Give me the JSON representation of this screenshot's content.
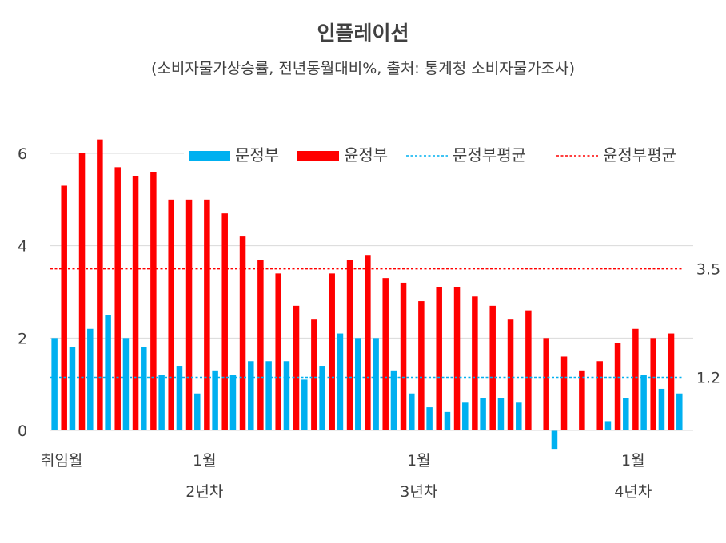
{
  "chart_data": {
    "type": "bar",
    "title": "인플레이션",
    "subtitle": "(소비자물가상승률, 전년동월대비%, 출처: 통계청 소비자물가조사)",
    "ylim": [
      0,
      6
    ],
    "yticks": [
      "0",
      "2",
      "4",
      "6"
    ],
    "grid": true,
    "legend_position": "top-right",
    "x_labels": [
      {
        "index": 0,
        "label": "취임월"
      },
      {
        "index": 8,
        "label": "1월",
        "group": "2년차"
      },
      {
        "index": 20,
        "label": "1월",
        "group": "3년차"
      },
      {
        "index": 32,
        "label": "1월",
        "group": "4년차"
      }
    ],
    "series": [
      {
        "name": "문정부",
        "color": "#00B0F0",
        "values": [
          2.0,
          1.8,
          2.2,
          2.5,
          2.0,
          1.8,
          1.2,
          1.4,
          0.8,
          1.3,
          1.2,
          1.5,
          1.5,
          1.5,
          1.1,
          1.4,
          2.1,
          2.0,
          2.0,
          1.3,
          0.8,
          0.5,
          0.4,
          0.6,
          0.7,
          0.7,
          0.6,
          null,
          -0.4,
          null,
          null,
          0.2,
          0.7,
          1.2,
          0.9,
          0.8
        ]
      },
      {
        "name": "윤정부",
        "color": "#FF0000",
        "values": [
          5.3,
          6.0,
          6.3,
          5.7,
          5.5,
          5.6,
          5.0,
          5.0,
          5.0,
          4.7,
          4.2,
          3.7,
          3.4,
          2.7,
          2.4,
          3.4,
          3.7,
          3.8,
          3.3,
          3.2,
          2.8,
          3.1,
          3.1,
          2.9,
          2.7,
          2.4,
          2.6,
          2.0,
          1.6,
          1.3,
          1.5,
          1.9,
          2.2,
          2.0,
          2.1,
          null
        ]
      }
    ],
    "averages": [
      {
        "name": "문정부평균",
        "value": 1.15,
        "label": "1.2",
        "color": "#00B0F0"
      },
      {
        "name": "윤정부평균",
        "value": 3.5,
        "label": "3.5",
        "color": "#FF0000"
      }
    ]
  }
}
